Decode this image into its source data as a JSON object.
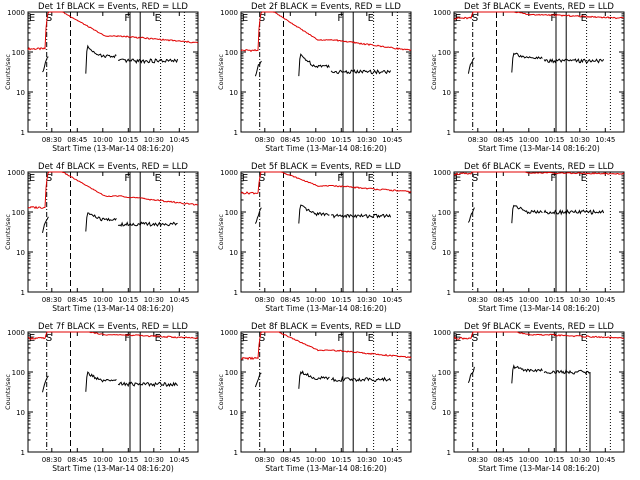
{
  "colors": {
    "events": "#000000",
    "lld": "#e00000",
    "axes": "#000000"
  },
  "common": {
    "xlabel": "Start Time (13-Mar-14 08:16:20)",
    "ylabel": "Counts/sec",
    "xtick_labels": [
      "08:30",
      "08:45",
      "10:00",
      "10:15",
      "10:30",
      "10:45"
    ],
    "ytick_labels": [
      "1",
      "10",
      "100",
      "1000"
    ],
    "markers": [
      {
        "label": "E",
        "x": 0.0
      },
      {
        "label": "S",
        "x": 0.07
      },
      {
        "label": "F",
        "x": 0.56
      },
      {
        "label": "E",
        "x": 0.74
      }
    ]
  },
  "chart_data": [
    {
      "type": "line",
      "title": "Det 1f BLACK = Events, RED = LLD",
      "log_y": true,
      "ylim": [
        1,
        1000
      ],
      "lld": {
        "pre": 120,
        "peak": 1000,
        "mid": 250,
        "tail": 170
      },
      "events": {
        "start": 30,
        "jump": 140,
        "after": 80,
        "tail": 60,
        "end": 0.88
      }
    },
    {
      "type": "line",
      "title": "Det 2f BLACK = Events, RED = LLD",
      "log_y": true,
      "ylim": [
        1,
        1000
      ],
      "lld": {
        "pre": 110,
        "peak": 1000,
        "mid": 200,
        "tail": 110
      },
      "events": {
        "start": 25,
        "jump": 90,
        "after": 45,
        "tail": 32,
        "end": 0.88
      }
    },
    {
      "type": "line",
      "title": "Det 3f BLACK = Events, RED = LLD",
      "log_y": true,
      "ylim": [
        1,
        1000
      ],
      "lld": {
        "pre": 700,
        "peak": 1000,
        "mid": 850,
        "tail": 700
      },
      "events": {
        "start": 30,
        "jump": 100,
        "after": 70,
        "tail": 60,
        "end": 0.88
      }
    },
    {
      "type": "line",
      "title": "Det 4f BLACK = Events, RED = LLD",
      "log_y": true,
      "ylim": [
        1,
        1000
      ],
      "lld": {
        "pre": 130,
        "peak": 1000,
        "mid": 250,
        "tail": 150
      },
      "events": {
        "start": 30,
        "jump": 100,
        "after": 65,
        "tail": 50,
        "end": 0.88
      }
    },
    {
      "type": "line",
      "title": "Det 5f BLACK = Events, RED = LLD",
      "log_y": true,
      "ylim": [
        1,
        1000
      ],
      "lld": {
        "pre": 300,
        "peak": 1000,
        "mid": 450,
        "tail": 320
      },
      "events": {
        "start": 50,
        "jump": 150,
        "after": 90,
        "tail": 80,
        "end": 0.88
      }
    },
    {
      "type": "line",
      "title": "Det 6f BLACK = Events, RED = LLD",
      "log_y": true,
      "ylim": [
        1,
        1000
      ],
      "lld": {
        "pre": 900,
        "peak": 1000,
        "mid": 950,
        "tail": 900
      },
      "events": {
        "start": 50,
        "jump": 160,
        "after": 100,
        "tail": 100,
        "end": 0.88
      }
    },
    {
      "type": "line",
      "title": "Det 7f BLACK = Events, RED = LLD",
      "log_y": true,
      "ylim": [
        1,
        1000
      ],
      "lld": {
        "pre": 700,
        "peak": 1000,
        "mid": 850,
        "tail": 700
      },
      "events": {
        "start": 30,
        "jump": 100,
        "after": 60,
        "tail": 50,
        "end": 0.88
      }
    },
    {
      "type": "line",
      "title": "Det 8f BLACK = Events, RED = LLD",
      "log_y": true,
      "ylim": [
        1,
        1000
      ],
      "lld": {
        "pre": 220,
        "peak": 1000,
        "mid": 350,
        "tail": 230
      },
      "events": {
        "start": 40,
        "jump": 110,
        "after": 70,
        "tail": 65,
        "end": 0.88
      }
    },
    {
      "type": "line",
      "title": "Det 9f BLACK = Events, RED = LLD",
      "log_y": true,
      "ylim": [
        1,
        1000
      ],
      "lld": {
        "pre": 700,
        "peak": 1000,
        "mid": 850,
        "tail": 700
      },
      "events": {
        "start": 50,
        "jump": 140,
        "after": 110,
        "tail": 100,
        "end": 0.8
      }
    }
  ]
}
